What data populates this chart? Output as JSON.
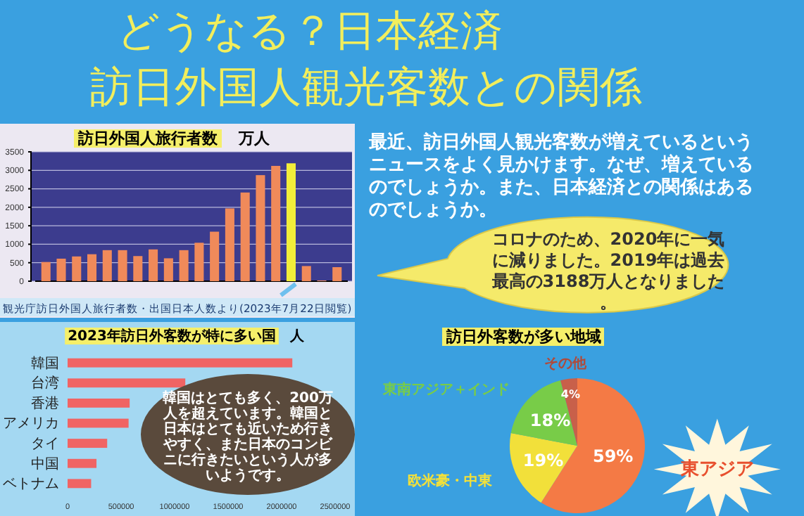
{
  "chart_data": [
    {
      "type": "bar",
      "title": "訪日外国人旅行者数",
      "ylabel": "万人",
      "categories": [
        null,
        null,
        null,
        null,
        null,
        null,
        null,
        null,
        null,
        null,
        null,
        null,
        null,
        null,
        null,
        null,
        null,
        null,
        null,
        null
      ],
      "values": [
        520,
        610,
        670,
        730,
        840,
        840,
        680,
        860,
        620,
        840,
        1040,
        1340,
        1970,
        2400,
        2870,
        3120,
        3190,
        410,
        20,
        380
      ],
      "colors": [
        "#f08a5a",
        "#f08a5a",
        "#f08a5a",
        "#f08a5a",
        "#f08a5a",
        "#f08a5a",
        "#f08a5a",
        "#f08a5a",
        "#f08a5a",
        "#f08a5a",
        "#f08a5a",
        "#f08a5a",
        "#f08a5a",
        "#f08a5a",
        "#f08a5a",
        "#f08a5a",
        "#f2ee3a",
        "#f08a5a",
        "#f08a5a",
        "#f08a5a"
      ],
      "ylim": [
        0,
        3500
      ],
      "yticks": [
        0,
        500,
        1000,
        1500,
        2000,
        2500,
        3000,
        3500
      ],
      "grid": "y",
      "annotations": [
        "観光庁訪日外国人旅行者数・出国日本人数より(2023年7月22日閲覧)"
      ]
    },
    {
      "type": "bar",
      "orientation": "horizontal",
      "title": "2023年訪日外客数が特に多い国",
      "xlabel": "人",
      "categories": [
        "韓国",
        "台湾",
        "香港",
        "アメリカ",
        "タイ",
        "中国",
        "ベトナム"
      ],
      "values": [
        2100000,
        1100000,
        580000,
        570000,
        370000,
        270000,
        220000
      ],
      "color": "#f06464",
      "xlim": [
        0,
        2500000
      ],
      "xticks": [
        0,
        500000,
        1000000,
        1500000,
        2000000,
        2500000
      ],
      "annotations": [
        "韓国はとても多く、200万人を超えています。韓国と日本はとても近いため行きやすく、また日本のコンビニに行きたいという人が多いようです。"
      ]
    },
    {
      "type": "pie",
      "title": "訪日外客数が多い地域",
      "categories": [
        "東アジア",
        "欧米豪・中東",
        "東南アジア＋インド",
        "その他"
      ],
      "values": [
        59,
        19,
        18,
        4
      ],
      "colors": [
        "#f47a45",
        "#f2e03a",
        "#78cc48",
        "#c8604a"
      ],
      "value_labels": [
        "59%",
        "19%",
        "18%",
        "4%"
      ]
    },
    {
      "type": "other",
      "title": "どうなる？日本経済",
      "subtitle": "訪日外国人観光客数との関係",
      "annotations": [
        "最近、訪日外国人観光客数が増えているというニュースをよく見かけます。なぜ、増えているのでしょうか。また、日本経済との関係はあるのでしょうか。",
        "コロナのため、2020年に一気に減りました。2019年は過去最高の3188万人となりました。"
      ]
    }
  ]
}
